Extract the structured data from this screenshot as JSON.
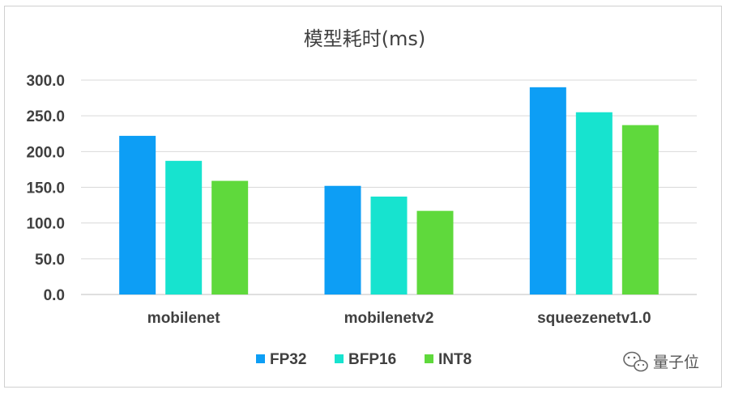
{
  "chart_data": {
    "type": "bar",
    "title": "模型耗时(ms)",
    "categories": [
      "mobilenet",
      "mobilenetv2",
      "squeezenetv1.0"
    ],
    "series": [
      {
        "name": "FP32",
        "values": [
          222,
          152,
          290
        ],
        "color": "#0d9ef5"
      },
      {
        "name": "BFP16",
        "values": [
          187,
          137,
          255
        ],
        "color": "#17e3cf"
      },
      {
        "name": "INT8",
        "values": [
          159,
          117,
          237
        ],
        "color": "#5fd93c"
      }
    ],
    "ylim": [
      0,
      300
    ],
    "yticks": [
      "0.0",
      "50.0",
      "100.0",
      "150.0",
      "200.0",
      "250.0",
      "300.0"
    ],
    "grid": true,
    "legend_position": "bottom"
  },
  "watermark": {
    "text": "量子位",
    "icon": "wechat-icon"
  }
}
